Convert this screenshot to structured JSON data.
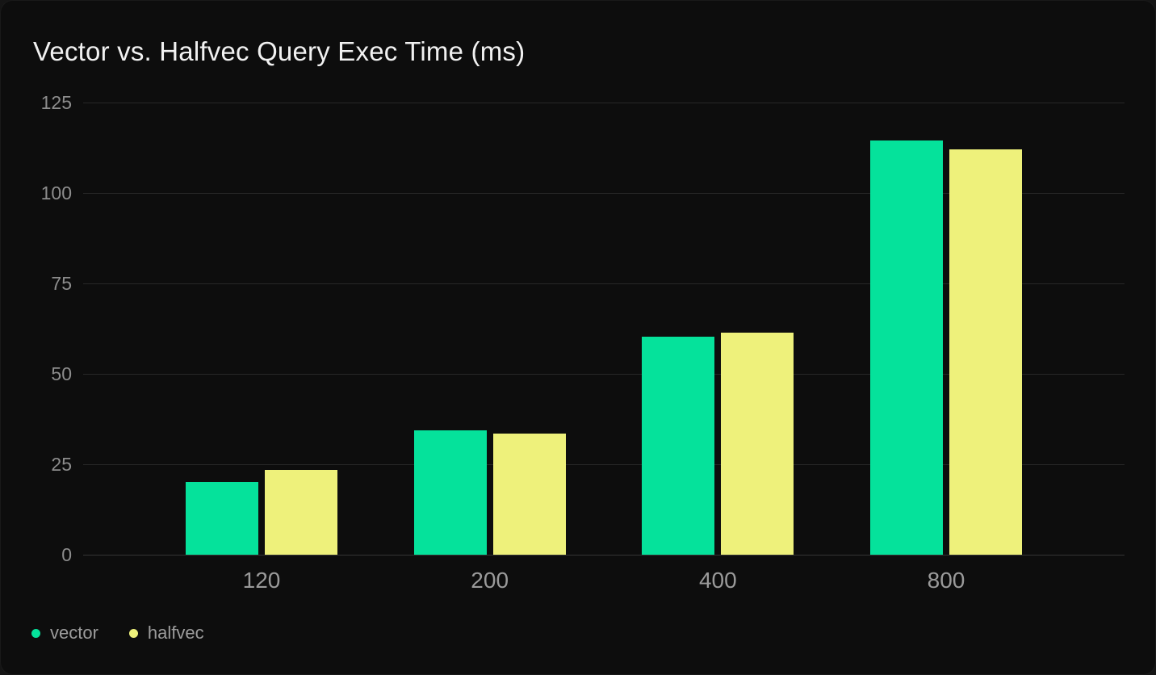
{
  "chart_data": {
    "type": "bar",
    "title": "Vector vs. Halfvec Query Exec Time (ms)",
    "xlabel": "",
    "ylabel": "",
    "categories": [
      "120",
      "200",
      "400",
      "800"
    ],
    "series": [
      {
        "name": "vector",
        "color": "#05e29b",
        "values": [
          20,
          34.3,
          60.3,
          114.5
        ]
      },
      {
        "name": "halfvec",
        "color": "#eef17b",
        "values": [
          23.5,
          33.4,
          61.4,
          112
        ]
      }
    ],
    "y_ticks": [
      0,
      25,
      50,
      75,
      100,
      125
    ],
    "ylim": [
      0,
      125
    ],
    "grid": "horizontal",
    "legend_position": "bottom-left"
  },
  "theme": {
    "page_bg": "#151515",
    "card_bg": "#0d0d0d",
    "grid_color": "#272727",
    "zero_line_color": "#343434",
    "title_color": "#f1f1f1",
    "ytick_color": "#8d8d8d",
    "xtick_color": "#9a9a9a",
    "legend_text_color": "#9c9c9c"
  }
}
